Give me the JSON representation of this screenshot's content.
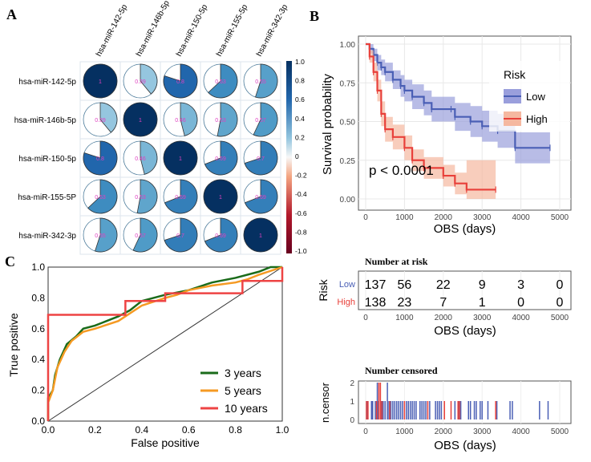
{
  "panels": {
    "a": "A",
    "b": "B",
    "c": "C"
  },
  "chart_data": [
    {
      "type": "heatmap",
      "style": "pie-correlogram",
      "labels": [
        "hsa-miR-142-5p",
        "hsa-miR-146b-5p",
        "hsa-miR-150-5p",
        "hsa-miR-155-5P",
        "hsa-miR-342-3p"
      ],
      "col_labels": [
        "hsa-miR-142-5p",
        "hsa-miR-146b-5p",
        "hsa-miR-150-5p",
        "hsa-miR-155-5p",
        "hsa-miR-342-3p"
      ],
      "values": [
        [
          1,
          0.39,
          0.8,
          0.63,
          0.55
        ],
        [
          0.39,
          1,
          0.46,
          0.53,
          0.57
        ],
        [
          0.8,
          0.46,
          1,
          0.69,
          0.7
        ],
        [
          0.63,
          0.53,
          0.69,
          1,
          0.69
        ],
        [
          0.55,
          0.57,
          0.7,
          0.69,
          1
        ]
      ],
      "value_labels": [
        [
          "1",
          "0.39",
          "0.8",
          "0.63",
          "0.55"
        ],
        [
          "0.39",
          "1",
          "0.46",
          "0.53",
          "0.57"
        ],
        [
          "0.8",
          "0.46",
          "1",
          "0.69",
          "0.7"
        ],
        [
          "0.63",
          "0.53",
          "0.69",
          "1",
          "0.69"
        ],
        [
          "0.55",
          "0.57",
          "0.7",
          "0.69",
          "1"
        ]
      ],
      "colorbar_ticks": [
        "1.0",
        "0.8",
        "0.6",
        "0.4",
        "0.2",
        "0",
        "-0.2",
        "-0.4",
        "-0.6",
        "-0.8",
        "-1.0"
      ],
      "colors": {
        "pos": "#053061",
        "neg": "#67001f",
        "text": "#e040c0"
      }
    },
    {
      "type": "line",
      "subtype": "kaplan-meier",
      "xlabel": "OBS (days)",
      "ylabel": "Survival probability",
      "xticks": [
        0,
        1000,
        2000,
        3000,
        4000,
        5000
      ],
      "yticks": [
        "0.00",
        "0.25",
        "0.50",
        "0.75",
        "1.00"
      ],
      "xlim": [
        0,
        5000
      ],
      "ylim": [
        0,
        1
      ],
      "annotation": "p < 0.0001",
      "legend": {
        "title": "Risk",
        "position": "top-right"
      },
      "series": [
        {
          "name": "Low",
          "color": "#4a5fb5",
          "ci_color": "#9a9fdc",
          "x": [
            0,
            100,
            200,
            300,
            400,
            500,
            700,
            900,
            1000,
            1200,
            1500,
            1700,
            2200,
            2300,
            2700,
            3000,
            3400,
            3850,
            4750
          ],
          "y": [
            1,
            0.97,
            0.93,
            0.88,
            0.85,
            0.82,
            0.77,
            0.73,
            0.7,
            0.66,
            0.62,
            0.58,
            0.58,
            0.53,
            0.5,
            0.47,
            0.44,
            0.33,
            0.33
          ],
          "ci_half": [
            0,
            0.03,
            0.04,
            0.05,
            0.05,
            0.06,
            0.06,
            0.07,
            0.07,
            0.08,
            0.08,
            0.08,
            0.08,
            0.09,
            0.1,
            0.1,
            0.11,
            0.1,
            0.1
          ]
        },
        {
          "name": "High",
          "color": "#e8403a",
          "ci_color": "#f5b8a0",
          "x": [
            0,
            100,
            200,
            300,
            400,
            500,
            700,
            1000,
            1200,
            1500,
            2000,
            2300,
            2600,
            3350
          ],
          "y": [
            1,
            0.92,
            0.82,
            0.7,
            0.55,
            0.45,
            0.4,
            0.33,
            0.25,
            0.2,
            0.15,
            0.1,
            0.06,
            0.06
          ],
          "ci_half": [
            0,
            0.04,
            0.06,
            0.07,
            0.08,
            0.08,
            0.08,
            0.08,
            0.07,
            0.07,
            0.07,
            0.07,
            0.19,
            0.19
          ]
        }
      ]
    },
    {
      "type": "table",
      "title": "Number at risk",
      "ylabel": "Risk",
      "xlabel": "OBS (days)",
      "xticks": [
        0,
        1000,
        2000,
        3000,
        4000,
        5000
      ],
      "rows": [
        {
          "name": "Low",
          "color": "#4a5fb5",
          "values": [
            "137",
            "56",
            "22",
            "9",
            "3",
            "0"
          ]
        },
        {
          "name": "High",
          "color": "#e8403a",
          "values": [
            "138",
            "23",
            "7",
            "1",
            "0",
            "0"
          ]
        }
      ]
    },
    {
      "type": "bar",
      "title": "Number censored",
      "ylabel": "n.censor",
      "xlabel": "OBS (days)",
      "xticks": [
        0,
        1000,
        2000,
        3000,
        4000,
        5000
      ],
      "yticks": [
        0,
        1,
        2
      ],
      "series": [
        {
          "name": "Low",
          "color": "#4a5fb5",
          "times": [
            40,
            150,
            180,
            250,
            300,
            330,
            400,
            450,
            500,
            560,
            600,
            650,
            700,
            750,
            800,
            850,
            900,
            950,
            1050,
            1100,
            1150,
            1200,
            1250,
            1300,
            1400,
            1450,
            1500,
            1550,
            1650,
            1800,
            1850,
            1900,
            1950,
            2300,
            2400,
            2450,
            2650,
            2700,
            2800,
            2850,
            2950,
            3000,
            3150,
            3380,
            3720,
            3780,
            4480,
            4700
          ],
          "counts": [
            1,
            1,
            1,
            1,
            2,
            1,
            1,
            1,
            1,
            2,
            1,
            1,
            1,
            1,
            1,
            1,
            1,
            1,
            1,
            1,
            1,
            1,
            1,
            1,
            1,
            1,
            1,
            1,
            1,
            1,
            1,
            1,
            1,
            1,
            1,
            1,
            1,
            1,
            1,
            1,
            1,
            1,
            1,
            1,
            1,
            1,
            1,
            1
          ]
        },
        {
          "name": "High",
          "color": "#e8403a",
          "times": [
            20,
            60,
            280,
            340,
            380,
            420,
            620,
            1000,
            1600,
            2030,
            2200,
            2380,
            2420,
            3350
          ],
          "counts": [
            1,
            1,
            1,
            2,
            2,
            1,
            1,
            1,
            1,
            1,
            1,
            1,
            1,
            1
          ]
        }
      ]
    },
    {
      "type": "line",
      "subtype": "roc",
      "xlabel": "False positive",
      "ylabel": "True positive",
      "xticks": [
        "0.0",
        "0.2",
        "0.4",
        "0.6",
        "0.8",
        "1.0"
      ],
      "yticks": [
        "0.0",
        "0.2",
        "0.4",
        "0.6",
        "0.8",
        "1.0"
      ],
      "xlim": [
        0,
        1
      ],
      "ylim": [
        0,
        1
      ],
      "legend": {
        "position": "bottom-right"
      },
      "series": [
        {
          "name": "3 years",
          "color": "#1a6b1a",
          "x": [
            0,
            0,
            0.02,
            0.03,
            0.05,
            0.08,
            0.12,
            0.15,
            0.2,
            0.25,
            0.3,
            0.35,
            0.4,
            0.45,
            0.5,
            0.6,
            0.7,
            0.8,
            0.9,
            0.95,
            1
          ],
          "y": [
            0,
            0.15,
            0.2,
            0.3,
            0.4,
            0.5,
            0.55,
            0.6,
            0.62,
            0.65,
            0.68,
            0.72,
            0.78,
            0.8,
            0.82,
            0.85,
            0.9,
            0.93,
            0.97,
            1,
            1
          ]
        },
        {
          "name": "5  years",
          "color": "#f59a23",
          "x": [
            0,
            0,
            0.02,
            0.04,
            0.07,
            0.1,
            0.15,
            0.2,
            0.3,
            0.35,
            0.4,
            0.5,
            0.55,
            0.6,
            0.7,
            0.8,
            0.85,
            0.9,
            1
          ],
          "y": [
            0,
            0.12,
            0.2,
            0.35,
            0.45,
            0.52,
            0.58,
            0.6,
            0.65,
            0.7,
            0.75,
            0.8,
            0.82,
            0.85,
            0.88,
            0.9,
            0.92,
            0.95,
            1
          ]
        },
        {
          "name": "10 years",
          "color": "#ee4444",
          "x": [
            0,
            0,
            0.33,
            0.33,
            0.5,
            0.5,
            0.83,
            0.83,
            1,
            1
          ],
          "y": [
            0,
            0.69,
            0.69,
            0.78,
            0.78,
            0.83,
            0.83,
            0.91,
            0.91,
            1
          ]
        }
      ]
    }
  ]
}
